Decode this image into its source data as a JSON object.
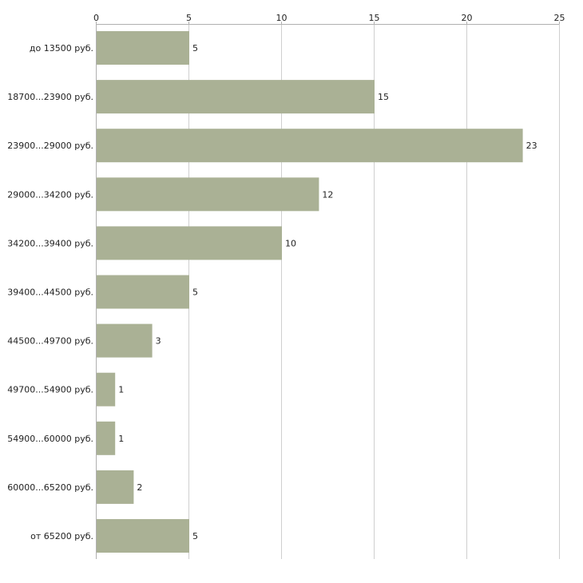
{
  "chart_data": {
    "type": "bar",
    "orientation": "horizontal",
    "title": "",
    "xlabel": "",
    "ylabel": "",
    "xlim": [
      0,
      25
    ],
    "xticks": [
      0,
      5,
      10,
      15,
      20,
      25
    ],
    "tick_labels": [
      "0",
      "5",
      "10",
      "15",
      "20",
      "25"
    ],
    "grid": true,
    "categories": [
      "до 13500 руб.",
      "18700...23900 руб.",
      "23900...29000 руб.",
      "29000...34200 руб.",
      "34200...39400 руб.",
      "39400...44500 руб.",
      "44500...49700 руб.",
      "49700...54900 руб.",
      "54900...60000 руб.",
      "60000...65200 руб.",
      "от 65200 руб."
    ],
    "values": [
      5,
      15,
      23,
      12,
      10,
      5,
      3,
      1,
      1,
      2,
      5
    ],
    "value_labels": [
      "5",
      "15",
      "23",
      "12",
      "10",
      "5",
      "3",
      "1",
      "1",
      "2",
      "5"
    ],
    "bar_color": "#aab195"
  }
}
